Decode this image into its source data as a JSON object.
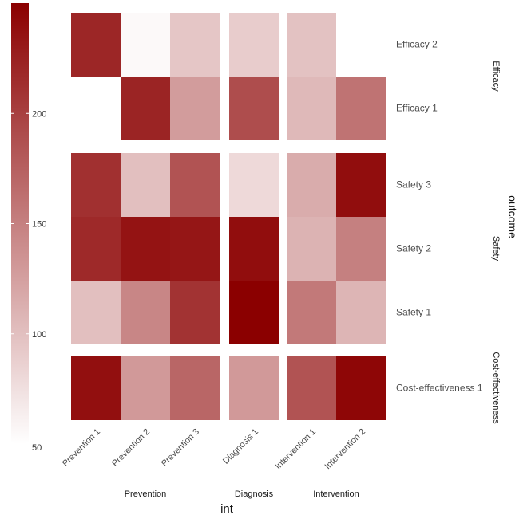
{
  "chart_data": {
    "type": "heatmap",
    "title": "",
    "xlabel": "int",
    "ylabel": "outcome",
    "color_scale": {
      "low": 50,
      "high": 250,
      "low_color": "#ffffff",
      "high_color": "#8b0000",
      "ticks": [
        50,
        100,
        150,
        200
      ]
    },
    "x_groups": [
      {
        "name": "Prevention",
        "categories": [
          "Prevention 1",
          "Prevention 2",
          "Prevention 3"
        ]
      },
      {
        "name": "Diagnosis",
        "categories": [
          "Diagnosis 1"
        ]
      },
      {
        "name": "Intervention",
        "categories": [
          "Intervention 1",
          "Intervention 2"
        ]
      }
    ],
    "y_groups": [
      {
        "name": "Efficacy",
        "categories": [
          "Efficacy 2",
          "Efficacy 1"
        ]
      },
      {
        "name": "Safety",
        "categories": [
          "Safety 3",
          "Safety 2",
          "Safety 1"
        ]
      },
      {
        "name": "Cost-effectiveness",
        "categories": [
          "Cost-effectiveness 1"
        ]
      }
    ],
    "cells": [
      {
        "x": "Prevention 1",
        "y": "Efficacy 2",
        "value": 220
      },
      {
        "x": "Prevention 2",
        "y": "Efficacy 2",
        "value": 55
      },
      {
        "x": "Prevention 3",
        "y": "Efficacy 2",
        "value": 95
      },
      {
        "x": "Diagnosis 1",
        "y": "Efficacy 2",
        "value": 90
      },
      {
        "x": "Intervention 1",
        "y": "Efficacy 2",
        "value": 98
      },
      {
        "x": "Prevention 2",
        "y": "Efficacy 1",
        "value": 222
      },
      {
        "x": "Prevention 3",
        "y": "Efficacy 1",
        "value": 128
      },
      {
        "x": "Diagnosis 1",
        "y": "Efficacy 1",
        "value": 190
      },
      {
        "x": "Intervention 1",
        "y": "Efficacy 1",
        "value": 105
      },
      {
        "x": "Intervention 2",
        "y": "Efficacy 1",
        "value": 160
      },
      {
        "x": "Prevention 1",
        "y": "Safety 3",
        "value": 212
      },
      {
        "x": "Prevention 2",
        "y": "Safety 3",
        "value": 100
      },
      {
        "x": "Prevention 3",
        "y": "Safety 3",
        "value": 185
      },
      {
        "x": "Diagnosis 1",
        "y": "Safety 3",
        "value": 80
      },
      {
        "x": "Intervention 1",
        "y": "Safety 3",
        "value": 115
      },
      {
        "x": "Intervention 2",
        "y": "Safety 3",
        "value": 240
      },
      {
        "x": "Prevention 1",
        "y": "Safety 2",
        "value": 218
      },
      {
        "x": "Prevention 2",
        "y": "Safety 2",
        "value": 235
      },
      {
        "x": "Prevention 3",
        "y": "Safety 2",
        "value": 233
      },
      {
        "x": "Diagnosis 1",
        "y": "Safety 2",
        "value": 240
      },
      {
        "x": "Intervention 1",
        "y": "Safety 2",
        "value": 110
      },
      {
        "x": "Intervention 2",
        "y": "Safety 2",
        "value": 150
      },
      {
        "x": "Prevention 1",
        "y": "Safety 1",
        "value": 100
      },
      {
        "x": "Prevention 2",
        "y": "Safety 1",
        "value": 145
      },
      {
        "x": "Prevention 3",
        "y": "Safety 1",
        "value": 210
      },
      {
        "x": "Diagnosis 1",
        "y": "Safety 1",
        "value": 250
      },
      {
        "x": "Intervention 1",
        "y": "Safety 1",
        "value": 155
      },
      {
        "x": "Intervention 2",
        "y": "Safety 1",
        "value": 108
      },
      {
        "x": "Prevention 1",
        "y": "Cost-effectiveness 1",
        "value": 238
      },
      {
        "x": "Prevention 2",
        "y": "Cost-effectiveness 1",
        "value": 130
      },
      {
        "x": "Prevention 3",
        "y": "Cost-effectiveness 1",
        "value": 170
      },
      {
        "x": "Diagnosis 1",
        "y": "Cost-effectiveness 1",
        "value": 130
      },
      {
        "x": "Intervention 1",
        "y": "Cost-effectiveness 1",
        "value": 185
      },
      {
        "x": "Intervention 2",
        "y": "Cost-effectiveness 1",
        "value": 245
      }
    ],
    "legend": "left",
    "grid": false
  }
}
